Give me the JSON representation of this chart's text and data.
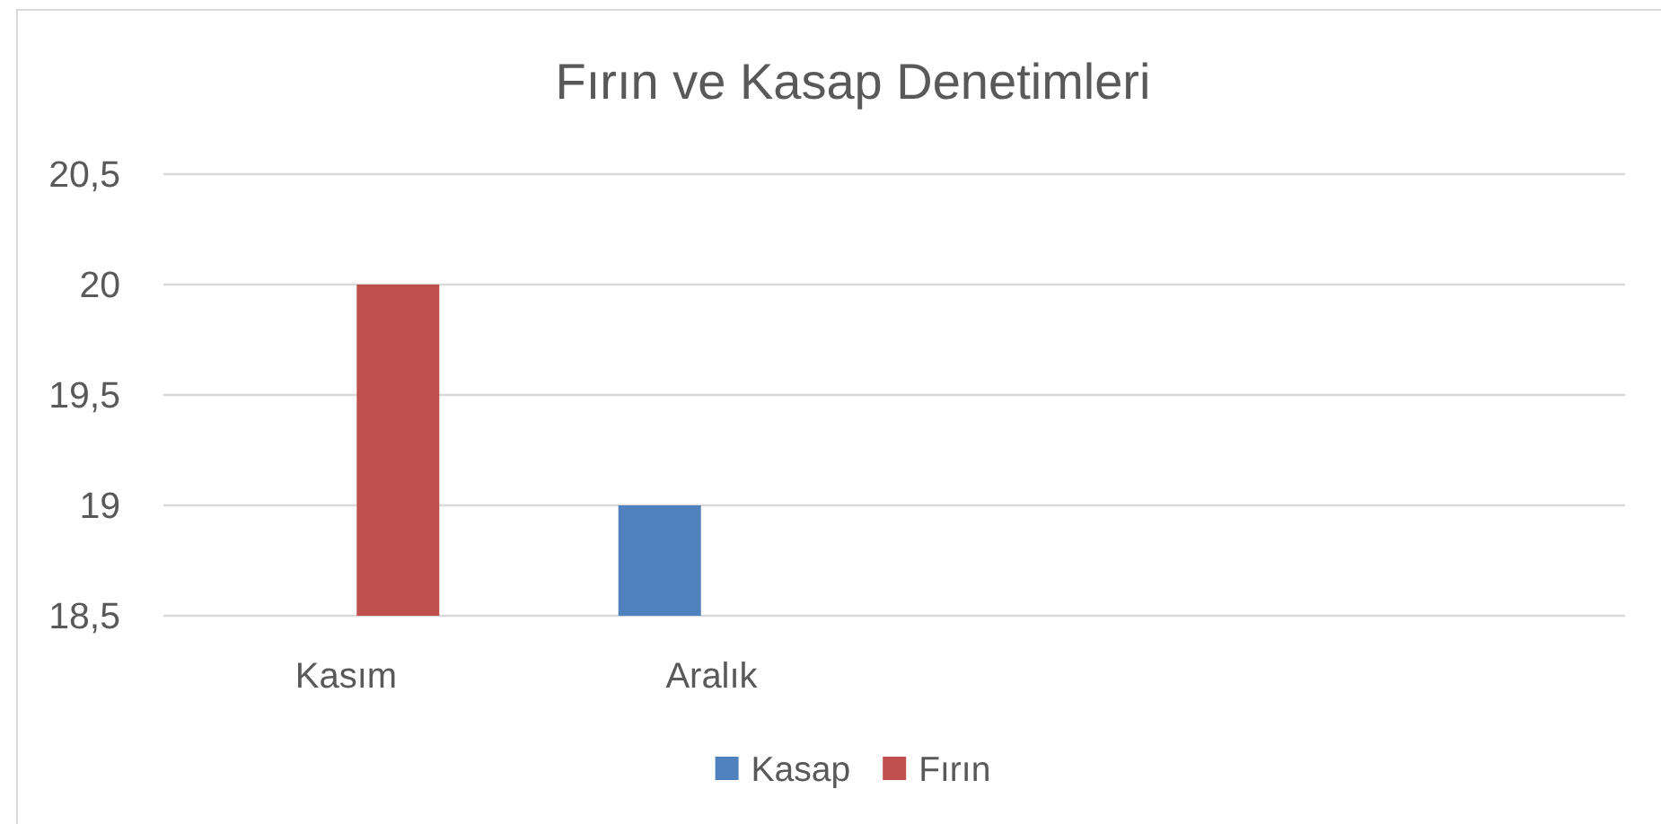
{
  "chart_data": {
    "type": "bar",
    "title": "Fırın ve Kasap Denetimleri",
    "categories": [
      "Kasım",
      "Aralık",
      null,
      null
    ],
    "series": [
      {
        "name": "Kasap",
        "color": "#4f81bd",
        "values": [
          null,
          19,
          null,
          null
        ]
      },
      {
        "name": "Fırın",
        "color": "#c0504d",
        "values": [
          20,
          null,
          null,
          null
        ]
      }
    ],
    "ylim": [
      18.5,
      20.5
    ],
    "yticks": [
      {
        "value": 18.5,
        "label": "18,5"
      },
      {
        "value": 19,
        "label": "19"
      },
      {
        "value": 19.5,
        "label": "19,5"
      },
      {
        "value": 20,
        "label": "20"
      },
      {
        "value": 20.5,
        "label": "20,5"
      }
    ],
    "grid": "y",
    "legend": "bottom"
  }
}
